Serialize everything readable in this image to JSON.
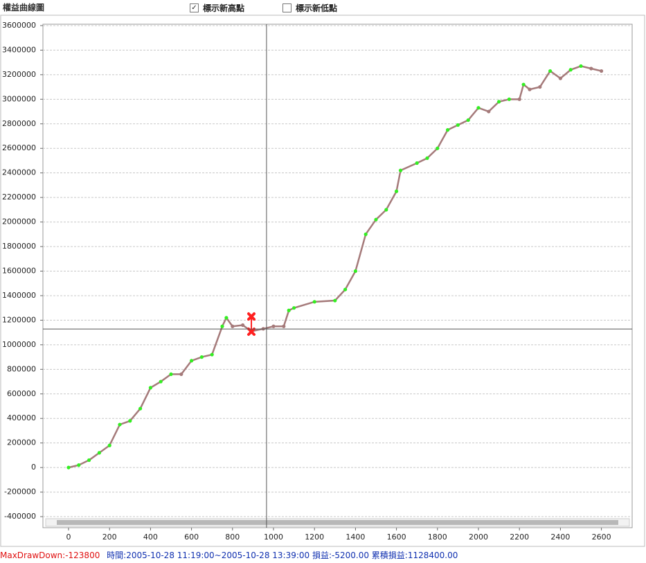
{
  "header": {
    "title": "權益曲線圖"
  },
  "controls": [
    {
      "label": "標示新高點",
      "checked": true
    },
    {
      "label": "標示新低點",
      "checked": false
    }
  ],
  "chart_data": {
    "type": "line",
    "x": [
      0,
      50,
      100,
      150,
      200,
      250,
      300,
      350,
      400,
      450,
      500,
      550,
      600,
      650,
      700,
      750,
      770,
      800,
      850,
      892,
      950,
      1000,
      1050,
      1075,
      1100,
      1200,
      1300,
      1350,
      1400,
      1450,
      1500,
      1550,
      1600,
      1620,
      1700,
      1750,
      1800,
      1850,
      1900,
      1950,
      2000,
      2050,
      2100,
      2150,
      2200,
      2220,
      2250,
      2300,
      2350,
      2400,
      2450,
      2500,
      2550,
      2600
    ],
    "series": [
      {
        "color": "#a57a7a",
        "new_high_color": "#33ee22",
        "values": [
          0,
          20000,
          60000,
          120000,
          180000,
          350000,
          380000,
          480000,
          650000,
          700000,
          760000,
          760000,
          870000,
          900000,
          920000,
          1150000,
          1220000,
          1150000,
          1160000,
          1110000,
          1130000,
          1150000,
          1150000,
          1280000,
          1300000,
          1350000,
          1360000,
          1450000,
          1600000,
          1900000,
          2020000,
          2100000,
          2250000,
          2420000,
          2480000,
          2520000,
          2600000,
          2750000,
          2790000,
          2830000,
          2930000,
          2900000,
          2980000,
          3000000,
          3000000,
          3120000,
          3080000,
          3100000,
          3230000,
          3170000,
          3240000,
          3270000,
          3250000,
          3230000
        ]
      }
    ],
    "xlim": [
      -125,
      2750
    ],
    "ylim": [
      -490000,
      3611000
    ],
    "xticks": [
      0,
      200,
      400,
      600,
      800,
      1000,
      1200,
      1400,
      1600,
      1800,
      2000,
      2200,
      2400,
      2600
    ],
    "yticks": [
      -400000,
      -200000,
      0,
      200000,
      400000,
      600000,
      800000,
      1000000,
      1200000,
      1400000,
      1600000,
      1800000,
      2000000,
      2200000,
      2400000,
      2600000,
      2800000,
      3000000,
      3200000,
      3400000,
      3600000
    ],
    "grid": true,
    "crosshair": {
      "x": 966,
      "y": 1128400,
      "color": "#555555"
    },
    "max_drawdown": {
      "x": 892,
      "high": 1230200,
      "low": 1106400,
      "color": "#ff2020"
    }
  },
  "status": {
    "max_drawdown": "MaxDrawDown:-123800",
    "detail": "時間:2005-10-28 11:19:00~2005-10-28 13:39:00 損益:-5200.00 累積損益:1128400.00"
  }
}
